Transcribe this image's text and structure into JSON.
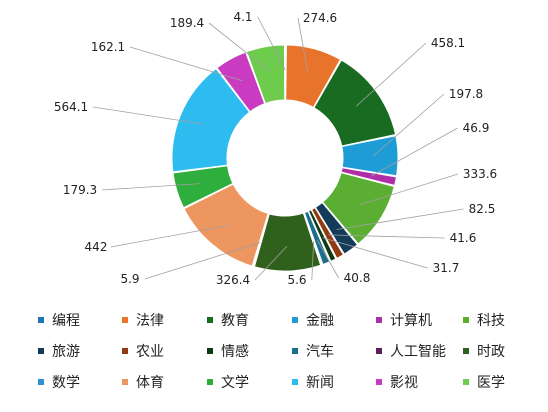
{
  "chart_data": {
    "type": "pie",
    "style": "donut",
    "title": "",
    "legend_position": "bottom",
    "slices": [
      {
        "label": "编程",
        "value": 4.1,
        "color": "#1f78b4"
      },
      {
        "label": "法律",
        "value": 274.6,
        "color": "#e8732a"
      },
      {
        "label": "教育",
        "value": 458.1,
        "color": "#1a6b22"
      },
      {
        "label": "金融",
        "value": 197.8,
        "color": "#1d9cd6"
      },
      {
        "label": "计算机",
        "value": 46.9,
        "color": "#b02da8"
      },
      {
        "label": "科技",
        "value": 333.6,
        "color": "#5aaf32"
      },
      {
        "label": "旅游",
        "value": 82.5,
        "color": "#123c5a"
      },
      {
        "label": "农业",
        "value": 41.6,
        "color": "#8f3a10"
      },
      {
        "label": "情感",
        "value": 31.7,
        "color": "#0f3b14"
      },
      {
        "label": "汽车",
        "value": 40.8,
        "color": "#1b6e8c"
      },
      {
        "label": "人工智能",
        "value": 5.6,
        "color": "#5b1f5a"
      },
      {
        "label": "时政",
        "value": 326.4,
        "color": "#30611c"
      },
      {
        "label": "数学",
        "value": 5.9,
        "color": "#2f8fd3"
      },
      {
        "label": "体育",
        "value": 442,
        "color": "#ee9660"
      },
      {
        "label": "文学",
        "value": 179.3,
        "color": "#2eae3c"
      },
      {
        "label": "新闻",
        "value": 564.1,
        "color": "#2ebcf0"
      },
      {
        "label": "影视",
        "value": 162.1,
        "color": "#c93cc2"
      },
      {
        "label": "医学",
        "value": 189.4,
        "color": "#6dcc4c"
      }
    ]
  }
}
